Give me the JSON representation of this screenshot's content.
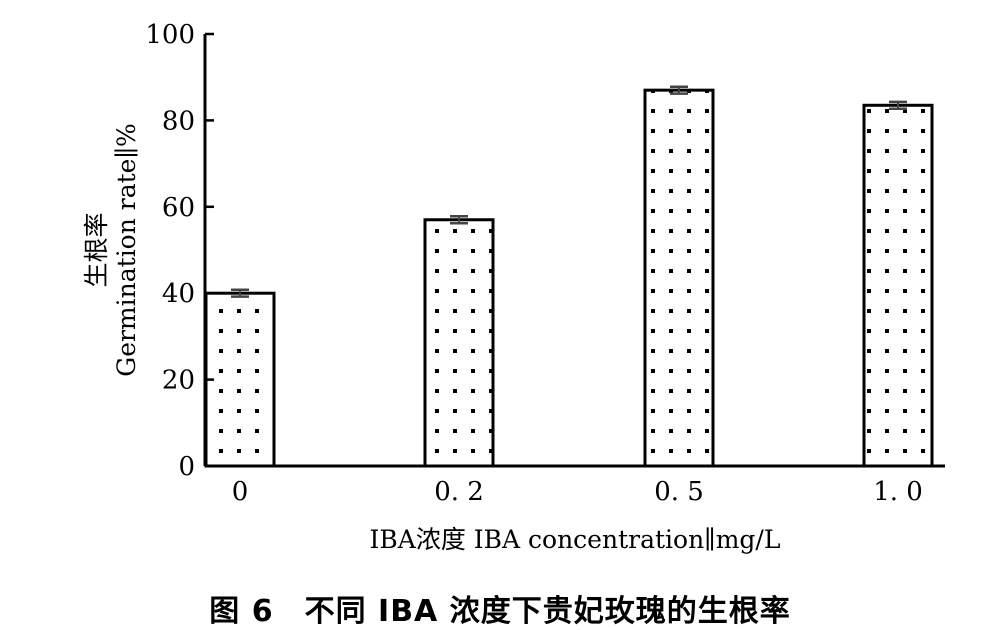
{
  "chart_data": {
    "type": "bar",
    "categories": [
      "0",
      "0. 2",
      "0. 5",
      "1. 0"
    ],
    "values": [
      40,
      57,
      87,
      83.5
    ],
    "error": [
      0.8,
      0.8,
      0.8,
      0.8
    ],
    "ylim": [
      0,
      100
    ],
    "y_ticks": [
      "0",
      "20",
      "40",
      "60",
      "80",
      "100"
    ],
    "xlabel": "IBA浓度 IBA concentration∥mg/L",
    "ylabel_cn": "生根率",
    "ylabel_en": "Germination rate∥%",
    "bar_fill": "dotted",
    "colors": {
      "bar_edge": "#000000",
      "dot": "#000000",
      "error": "#444444"
    }
  },
  "caption": "图 6　不同 IBA 浓度下贵妃玫瑰的生根率"
}
